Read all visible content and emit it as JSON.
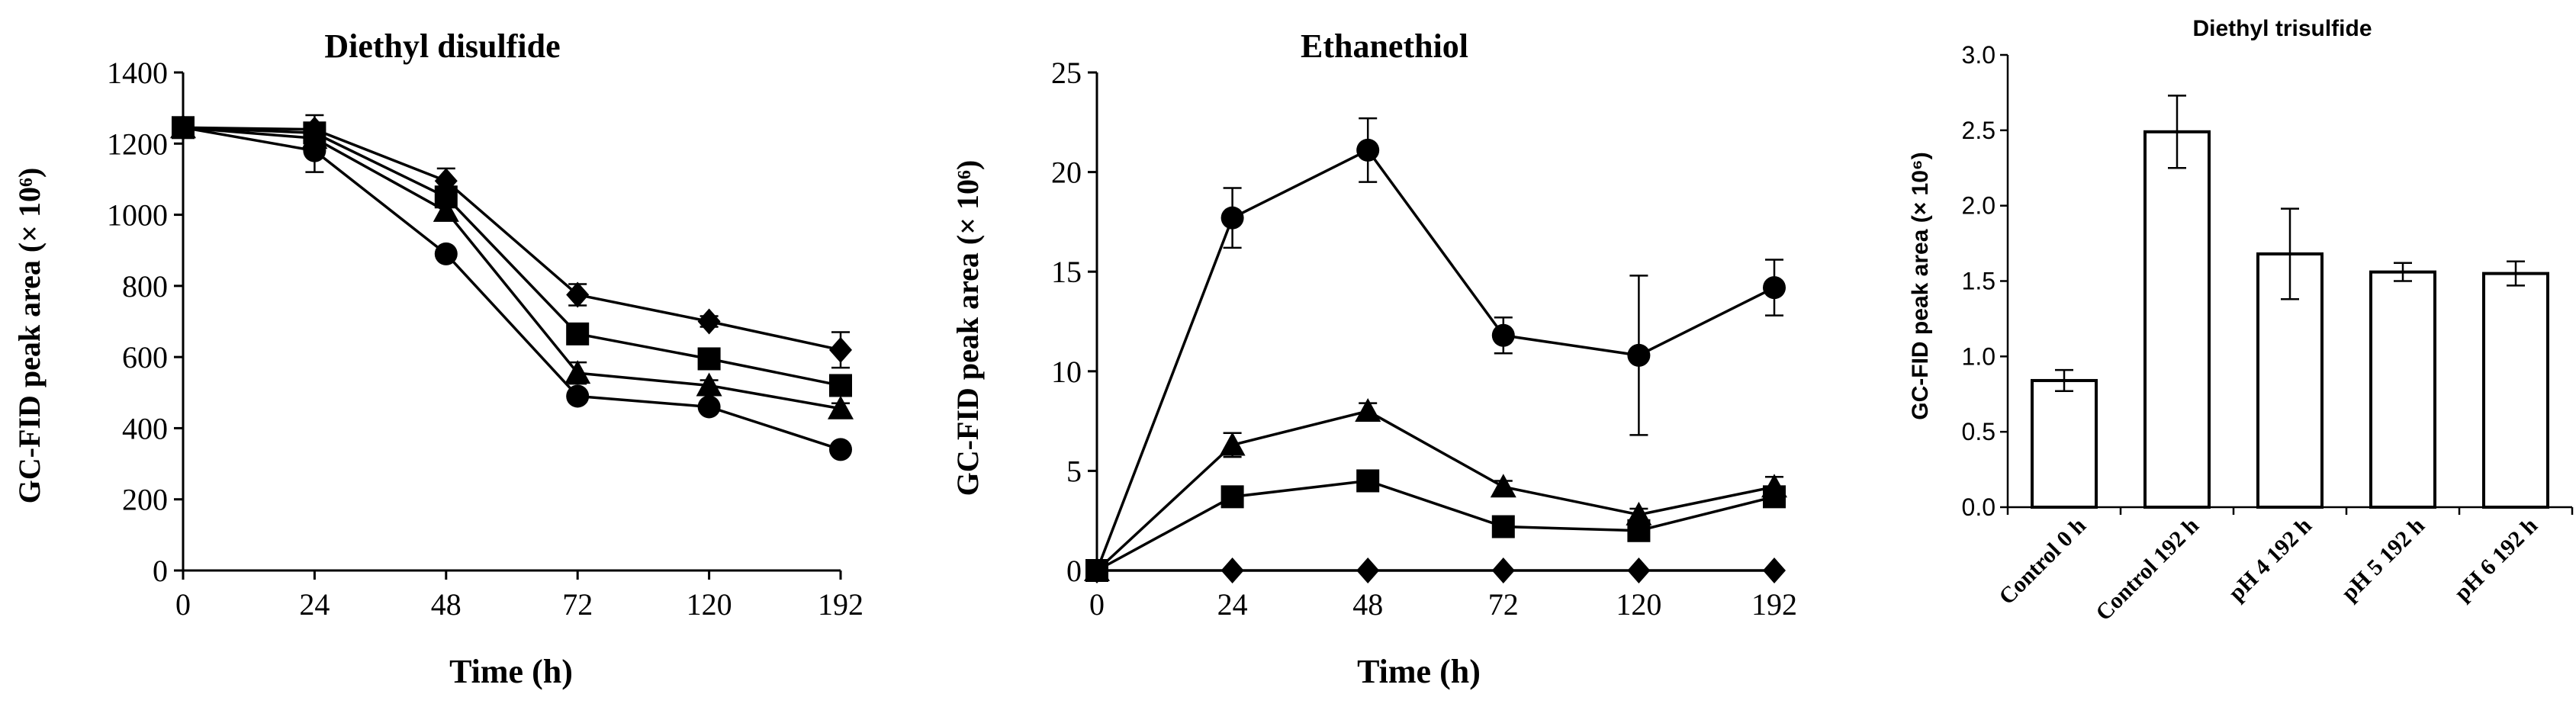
{
  "chart_data": [
    {
      "type": "line",
      "title": "Diethyl disulfide",
      "xlabel": "Time (h)",
      "ylabel": "GC-FID peak area (× 10⁶)",
      "categories": [
        "0",
        "24",
        "48",
        "72",
        "120",
        "192"
      ],
      "ylim": [
        0,
        1400
      ],
      "yticks": [
        "0",
        "200",
        "400",
        "600",
        "800",
        "1000",
        "1200",
        "1400"
      ],
      "grid": false,
      "series": [
        {
          "marker": "diamond",
          "values": [
            1245,
            1240,
            1095,
            775,
            700,
            620
          ],
          "errors": [
            15,
            40,
            35,
            30,
            15,
            50
          ]
        },
        {
          "marker": "square",
          "values": [
            1245,
            1230,
            1050,
            665,
            595,
            520
          ],
          "errors": [
            15,
            25,
            25,
            15,
            15,
            15
          ]
        },
        {
          "marker": "triangle",
          "values": [
            1245,
            1215,
            1010,
            555,
            520,
            455
          ],
          "errors": [
            15,
            40,
            25,
            30,
            15,
            15
          ]
        },
        {
          "marker": "circle",
          "values": [
            1245,
            1180,
            890,
            490,
            460,
            340
          ],
          "errors": [
            15,
            60,
            15,
            15,
            15,
            10
          ]
        }
      ]
    },
    {
      "type": "line",
      "title": "Ethanethiol",
      "xlabel": "Time (h)",
      "ylabel": "GC-FID peak area (× 10⁶)",
      "categories": [
        "0",
        "24",
        "48",
        "72",
        "120",
        "192"
      ],
      "ylim": [
        0,
        25
      ],
      "yticks": [
        "0",
        "5",
        "10",
        "15",
        "20",
        "25"
      ],
      "grid": false,
      "series": [
        {
          "marker": "circle",
          "values": [
            0,
            17.7,
            21.1,
            11.8,
            10.8,
            14.2
          ],
          "errors": [
            0,
            1.5,
            1.6,
            0.9,
            4.0,
            1.4
          ]
        },
        {
          "marker": "triangle",
          "values": [
            0,
            6.3,
            8.0,
            4.2,
            2.8,
            4.2
          ],
          "errors": [
            0,
            0.6,
            0.4,
            0.3,
            0.3,
            0.5
          ]
        },
        {
          "marker": "square",
          "values": [
            0,
            3.7,
            4.5,
            2.2,
            2.0,
            3.7
          ],
          "errors": [
            0,
            0.3,
            0.5,
            0.3,
            0.3,
            0.3
          ]
        },
        {
          "marker": "diamond",
          "values": [
            0,
            0,
            0,
            0,
            0,
            0
          ],
          "errors": [
            0,
            0,
            0,
            0,
            0,
            0
          ]
        }
      ]
    },
    {
      "type": "bar",
      "title": "Diethyl trisulfide",
      "xlabel": "",
      "ylabel": "GC-FID peak area (× 10⁶)",
      "categories": [
        "Control 0 h",
        "Control 192 h",
        "pH 4 192 h",
        "pH 5 192 h",
        "pH 6 192 h"
      ],
      "values": [
        0.84,
        2.49,
        1.68,
        1.56,
        1.55
      ],
      "errors": [
        0.07,
        0.24,
        0.3,
        0.06,
        0.08
      ],
      "ylim": [
        0,
        3.0
      ],
      "yticks": [
        "0.0",
        "0.5",
        "1.0",
        "1.5",
        "2.0",
        "2.5",
        "3.0"
      ],
      "grid": false
    }
  ]
}
